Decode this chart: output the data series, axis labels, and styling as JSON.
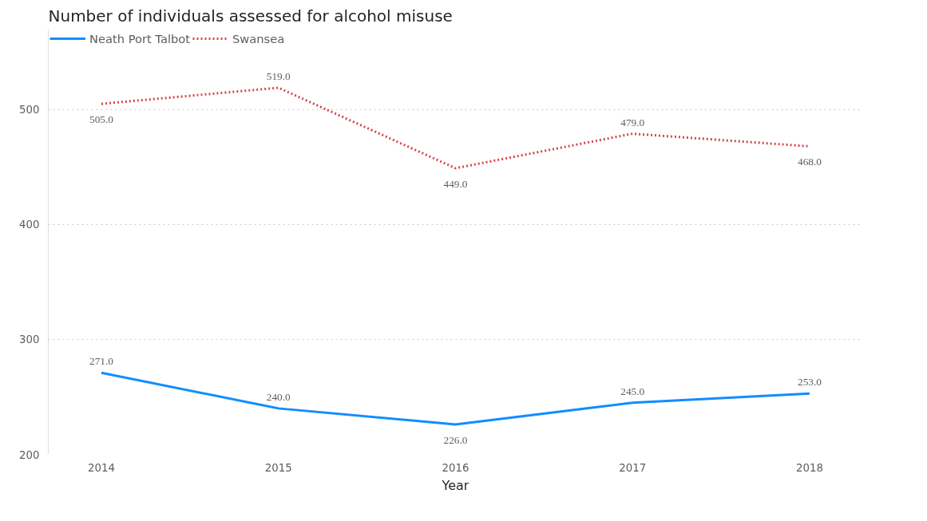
{
  "chart_data": {
    "type": "line",
    "title": "Number of individuals assessed for alcohol misuse",
    "xlabel": "Year",
    "categories": [
      "2014",
      "2015",
      "2016",
      "2017",
      "2018"
    ],
    "series": [
      {
        "name": "Neath Port Talbot",
        "color": "#118dff",
        "line_style": "solid",
        "values": [
          271,
          240,
          226,
          245,
          253
        ],
        "value_labels": [
          "271.0",
          "240.0",
          "226.0",
          "245.0",
          "253.0"
        ]
      },
      {
        "name": "Swansea",
        "color": "#d64550",
        "line_style": "dotted",
        "values": [
          505,
          519,
          449,
          479,
          468
        ],
        "value_labels": [
          "505.0",
          "519.0",
          "449.0",
          "479.0",
          "468.0"
        ]
      }
    ],
    "ylim": [
      200,
      570
    ],
    "yticks": [
      200,
      300,
      400,
      500
    ],
    "grid": "y",
    "legend": "top left"
  }
}
